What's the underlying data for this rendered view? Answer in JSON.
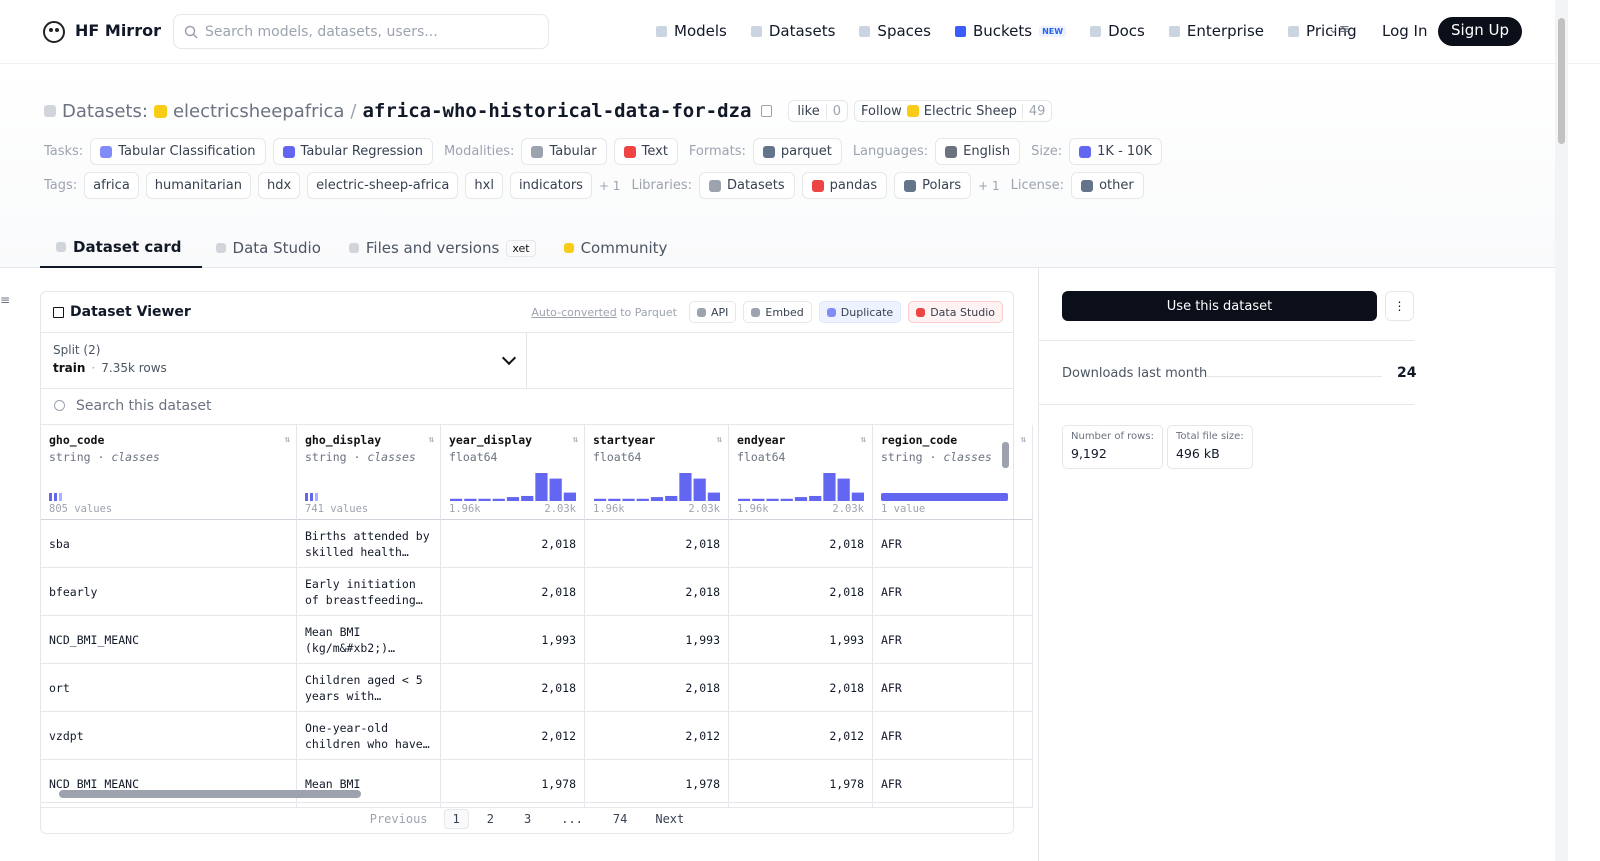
{
  "nav": {
    "brand": "HF Mirror",
    "search_placeholder": "Search models, datasets, users...",
    "links": [
      "Models",
      "Datasets",
      "Spaces",
      "Buckets",
      "Docs",
      "Enterprise",
      "Pricing"
    ],
    "new_badge": "NEW",
    "login": "Log In",
    "signup": "Sign Up"
  },
  "header": {
    "prefix": "Datasets:",
    "owner": "electricsheepafrica",
    "separator": "/",
    "name": "africa-who-historical-data-for-dza",
    "like": "like",
    "like_count": "0",
    "follow": "Follow",
    "follow_org": "Electric Sheep",
    "follow_count": "49"
  },
  "meta_rows": [
    [
      {
        "label": "Tasks:",
        "items": [
          "Tabular Classification",
          "Tabular Regression"
        ]
      },
      {
        "label": "Modalities:",
        "items": [
          "Tabular",
          "Text"
        ]
      },
      {
        "label": "Formats:",
        "items": [
          "parquet"
        ]
      },
      {
        "label": "Languages:",
        "items": [
          "English"
        ]
      },
      {
        "label": "Size:",
        "items": [
          "1K - 10K"
        ]
      }
    ],
    [
      {
        "label": "Tags:",
        "items": [
          "africa",
          "humanitarian",
          "hdx",
          "electric-sheep-africa",
          "hxl",
          "indicators"
        ],
        "more": "+ 1"
      },
      {
        "label": "Libraries:",
        "items": [
          "Datasets",
          "pandas",
          "Polars"
        ],
        "more": "+ 1"
      },
      {
        "label": "License:",
        "items": [
          "other"
        ]
      }
    ]
  ],
  "tabs": [
    "Dataset card",
    "Data Studio",
    "Files and versions",
    "Community"
  ],
  "xet_badge": "xet",
  "viewer": {
    "title": "Dataset Viewer",
    "auto_converted": "Auto-converted",
    "to_parquet": "to Parquet",
    "buttons": [
      "API",
      "Embed",
      "Duplicate",
      "Data Studio"
    ],
    "split_label": "Split (2)",
    "split": "train",
    "split_rows": "7.35k rows",
    "search_placeholder": "Search this dataset",
    "columns": [
      {
        "name": "gho_code",
        "dtype": "string",
        "kind": "classes",
        "summary": "805 values"
      },
      {
        "name": "gho_display",
        "dtype": "string",
        "kind": "classes",
        "summary": "741 values"
      },
      {
        "name": "year_display",
        "dtype": "float64",
        "min": "1.96k",
        "max": "2.03k",
        "histogram": [
          40,
          40,
          40,
          40,
          70,
          90,
          500,
          400,
          150
        ]
      },
      {
        "name": "startyear",
        "dtype": "float64",
        "min": "1.96k",
        "max": "2.03k",
        "histogram": [
          40,
          40,
          40,
          40,
          70,
          90,
          500,
          400,
          150
        ]
      },
      {
        "name": "endyear",
        "dtype": "float64",
        "min": "1.96k",
        "max": "2.03k",
        "histogram": [
          40,
          40,
          40,
          40,
          70,
          90,
          500,
          400,
          150
        ]
      },
      {
        "name": "region_code",
        "dtype": "string",
        "kind": "classes",
        "summary": "1 value"
      }
    ],
    "rows": [
      [
        "sba",
        "Births attended by skilled health…",
        "2,018",
        "2,018",
        "2,018",
        "AFR"
      ],
      [
        "bfearly",
        "Early initiation of breastfeeding…",
        "2,018",
        "2,018",
        "2,018",
        "AFR"
      ],
      [
        "NCD_BMI_MEANC",
        "Mean BMI (kg/m&#xb2;)…",
        "1,993",
        "1,993",
        "1,993",
        "AFR"
      ],
      [
        "ort",
        "Children aged < 5 years with…",
        "2,018",
        "2,018",
        "2,018",
        "AFR"
      ],
      [
        "vzdpt",
        "One-year-old children who have…",
        "2,012",
        "2,012",
        "2,012",
        "AFR"
      ],
      [
        "NCD_BMI_MEANC",
        "Mean BMI",
        "1,978",
        "1,978",
        "1,978",
        "AFR"
      ]
    ],
    "pagination": {
      "previous": "Previous",
      "pages": [
        "1",
        "2",
        "3",
        "...",
        "74"
      ],
      "next": "Next"
    }
  },
  "sidebar": {
    "use_button": "Use this dataset",
    "downloads_label": "Downloads last month",
    "downloads": "24",
    "stats": [
      {
        "label": "Number of rows:",
        "value": "9,192"
      },
      {
        "label": "Total file size:",
        "value": "496 kB"
      }
    ]
  }
}
